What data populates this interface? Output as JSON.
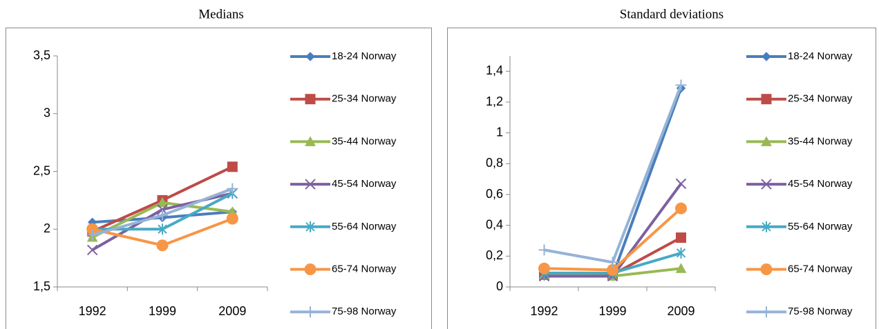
{
  "chart_data": [
    {
      "type": "line",
      "title": "Medians",
      "categories": [
        "1992",
        "1999",
        "2009"
      ],
      "ylim": [
        1.5,
        3.5
      ],
      "yticks": [
        {
          "value": 1.5,
          "label": "1,5"
        },
        2,
        {
          "value": 2.5,
          "label": "2,5"
        },
        3,
        {
          "value": 3.5,
          "label": "3,5"
        }
      ],
      "series": [
        {
          "name": "18-24 Norway",
          "color": "#4a7ebb",
          "marker": "diamond",
          "values": [
            2.06,
            2.1,
            2.15
          ]
        },
        {
          "name": "25-34 Norway",
          "color": "#be4b48",
          "marker": "square",
          "values": [
            1.98,
            2.25,
            2.54
          ]
        },
        {
          "name": "35-44 Norway",
          "color": "#98b954",
          "marker": "triangle",
          "values": [
            1.93,
            2.23,
            2.15
          ]
        },
        {
          "name": "45-54 Norway",
          "color": "#7d60a0",
          "marker": "x",
          "values": [
            1.82,
            2.17,
            2.31
          ]
        },
        {
          "name": "55-64 Norway",
          "color": "#46aac5",
          "marker": "star",
          "values": [
            2.0,
            2.0,
            2.31
          ]
        },
        {
          "name": "65-74 Norway",
          "color": "#f79646",
          "marker": "circle",
          "values": [
            2.0,
            1.86,
            2.09
          ]
        },
        {
          "name": "75-98 Norway",
          "color": "#95b3d7",
          "marker": "plus",
          "values": [
            1.95,
            2.12,
            2.35
          ]
        }
      ]
    },
    {
      "type": "line",
      "title": "Standard deviations",
      "categories": [
        "1992",
        "1999",
        "2009"
      ],
      "ylim": [
        0,
        1.5
      ],
      "yticks": [
        0,
        {
          "value": 0.2,
          "label": "0,2"
        },
        {
          "value": 0.4,
          "label": "0,4"
        },
        {
          "value": 0.6,
          "label": "0,6"
        },
        {
          "value": 0.8,
          "label": "0,8"
        },
        1,
        {
          "value": 1.2,
          "label": "1,2"
        },
        {
          "value": 1.4,
          "label": "1,4"
        }
      ],
      "series": [
        {
          "name": "18-24 Norway",
          "color": "#4a7ebb",
          "marker": "diamond",
          "values": [
            0.07,
            0.07,
            1.29
          ]
        },
        {
          "name": "25-34 Norway",
          "color": "#be4b48",
          "marker": "square",
          "values": [
            0.08,
            0.08,
            0.32
          ]
        },
        {
          "name": "35-44 Norway",
          "color": "#98b954",
          "marker": "triangle",
          "values": [
            0.08,
            0.07,
            0.12
          ]
        },
        {
          "name": "45-54 Norway",
          "color": "#7d60a0",
          "marker": "x",
          "values": [
            0.07,
            0.07,
            0.67
          ]
        },
        {
          "name": "55-64 Norway",
          "color": "#46aac5",
          "marker": "star",
          "values": [
            0.09,
            0.09,
            0.22
          ]
        },
        {
          "name": "65-74 Norway",
          "color": "#f79646",
          "marker": "circle",
          "values": [
            0.12,
            0.11,
            0.51
          ]
        },
        {
          "name": "75-98 Norway",
          "color": "#95b3d7",
          "marker": "plus",
          "values": [
            0.24,
            0.16,
            1.31
          ]
        }
      ]
    }
  ]
}
